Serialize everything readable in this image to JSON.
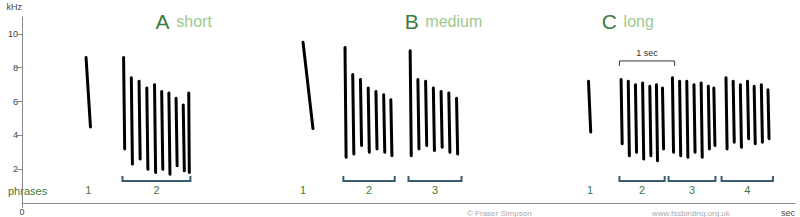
{
  "chart_data": {
    "type": "spectrogram",
    "y_label": "kHz",
    "x_label": "sec",
    "xlim": [
      0,
      14
    ],
    "xticks": [
      0
    ],
    "ylim": [
      0,
      11
    ],
    "yticks": [
      2,
      4,
      6,
      8,
      10
    ],
    "grid": false,
    "color": "#000000",
    "phrases_label": "phrases",
    "scale_bar": {
      "label": "1 sec",
      "start": 10.82,
      "length": 1,
      "y": 8.4
    },
    "credits": [
      "© Fraser Simpson",
      "www.fssbirding.org.uk"
    ],
    "songs": [
      {
        "letter": "A",
        "label": "short",
        "x": 2.42,
        "notes": [
          [
            1.16,
            8.6,
            1.24,
            4.5
          ],
          [
            1.84,
            8.6,
            1.86,
            3.2
          ],
          [
            1.98,
            7.4,
            2.0,
            2.3
          ],
          [
            2.12,
            7.2,
            2.14,
            2.6
          ],
          [
            2.26,
            6.8,
            2.28,
            2.0
          ],
          [
            2.4,
            7.0,
            2.42,
            1.8
          ],
          [
            2.53,
            6.6,
            2.55,
            2.0
          ],
          [
            2.66,
            6.5,
            2.68,
            1.7
          ],
          [
            2.79,
            6.2,
            2.81,
            2.2
          ],
          [
            2.92,
            5.8,
            2.94,
            1.9
          ],
          [
            3.02,
            6.5,
            3.03,
            1.8
          ]
        ],
        "phrases": [
          {
            "label": "1",
            "x": 1.2
          },
          {
            "label": "2",
            "start": 1.82,
            "end": 3.05
          }
        ]
      },
      {
        "letter": "B",
        "label": "medium",
        "x": 6.93,
        "notes": [
          [
            5.09,
            9.5,
            5.27,
            4.4
          ],
          [
            5.85,
            9.2,
            5.87,
            2.7
          ],
          [
            5.99,
            7.6,
            6.01,
            2.9
          ],
          [
            6.13,
            7.3,
            6.15,
            3.4
          ],
          [
            6.27,
            6.8,
            6.29,
            3.0
          ],
          [
            6.41,
            6.6,
            6.43,
            3.2
          ],
          [
            6.55,
            6.4,
            6.57,
            3.0
          ],
          [
            6.68,
            6.1,
            6.7,
            2.8
          ],
          [
            7.03,
            9.0,
            7.05,
            2.8
          ],
          [
            7.17,
            7.3,
            7.19,
            3.2
          ],
          [
            7.31,
            7.2,
            7.33,
            3.4
          ],
          [
            7.45,
            6.8,
            7.47,
            3.1
          ],
          [
            7.59,
            6.6,
            7.61,
            3.3
          ],
          [
            7.73,
            6.5,
            7.75,
            3.0
          ],
          [
            7.87,
            6.2,
            7.89,
            2.9
          ]
        ],
        "phrases": [
          {
            "label": "1",
            "x": 5.09
          },
          {
            "label": "2",
            "start": 5.82,
            "end": 6.75
          },
          {
            "label": "3",
            "start": 7.0,
            "end": 7.96
          }
        ]
      },
      {
        "letter": "C",
        "label": "long",
        "x": 10.5,
        "notes": [
          [
            10.26,
            7.2,
            10.3,
            4.2
          ],
          [
            10.85,
            7.3,
            10.87,
            3.5
          ],
          [
            10.98,
            7.2,
            11.0,
            2.8
          ],
          [
            11.11,
            7.0,
            11.13,
            3.0
          ],
          [
            11.24,
            7.1,
            11.26,
            2.6
          ],
          [
            11.37,
            6.9,
            11.39,
            2.8
          ],
          [
            11.49,
            7.0,
            11.51,
            2.5
          ],
          [
            11.6,
            6.8,
            11.62,
            3.2
          ],
          [
            11.78,
            7.4,
            11.8,
            3.0
          ],
          [
            11.91,
            7.2,
            11.93,
            2.8
          ],
          [
            12.04,
            7.2,
            12.06,
            2.7
          ],
          [
            12.17,
            7.0,
            12.19,
            3.0
          ],
          [
            12.3,
            7.1,
            12.32,
            2.7
          ],
          [
            12.43,
            6.9,
            12.45,
            3.2
          ],
          [
            12.53,
            6.8,
            12.55,
            3.4
          ],
          [
            12.75,
            7.4,
            12.77,
            3.2
          ],
          [
            12.88,
            7.2,
            12.9,
            3.6
          ],
          [
            13.01,
            7.0,
            13.03,
            3.3
          ],
          [
            13.14,
            7.2,
            13.16,
            3.8
          ],
          [
            13.26,
            6.9,
            13.28,
            3.5
          ],
          [
            13.39,
            7.0,
            13.41,
            3.6
          ],
          [
            13.51,
            6.7,
            13.53,
            3.8
          ]
        ],
        "phrases": [
          {
            "label": "1",
            "x": 10.29
          },
          {
            "label": "2",
            "start": 10.82,
            "end": 11.64
          },
          {
            "label": "3",
            "start": 11.71,
            "end": 12.56
          },
          {
            "label": "4",
            "start": 12.67,
            "end": 13.6
          }
        ]
      }
    ]
  }
}
